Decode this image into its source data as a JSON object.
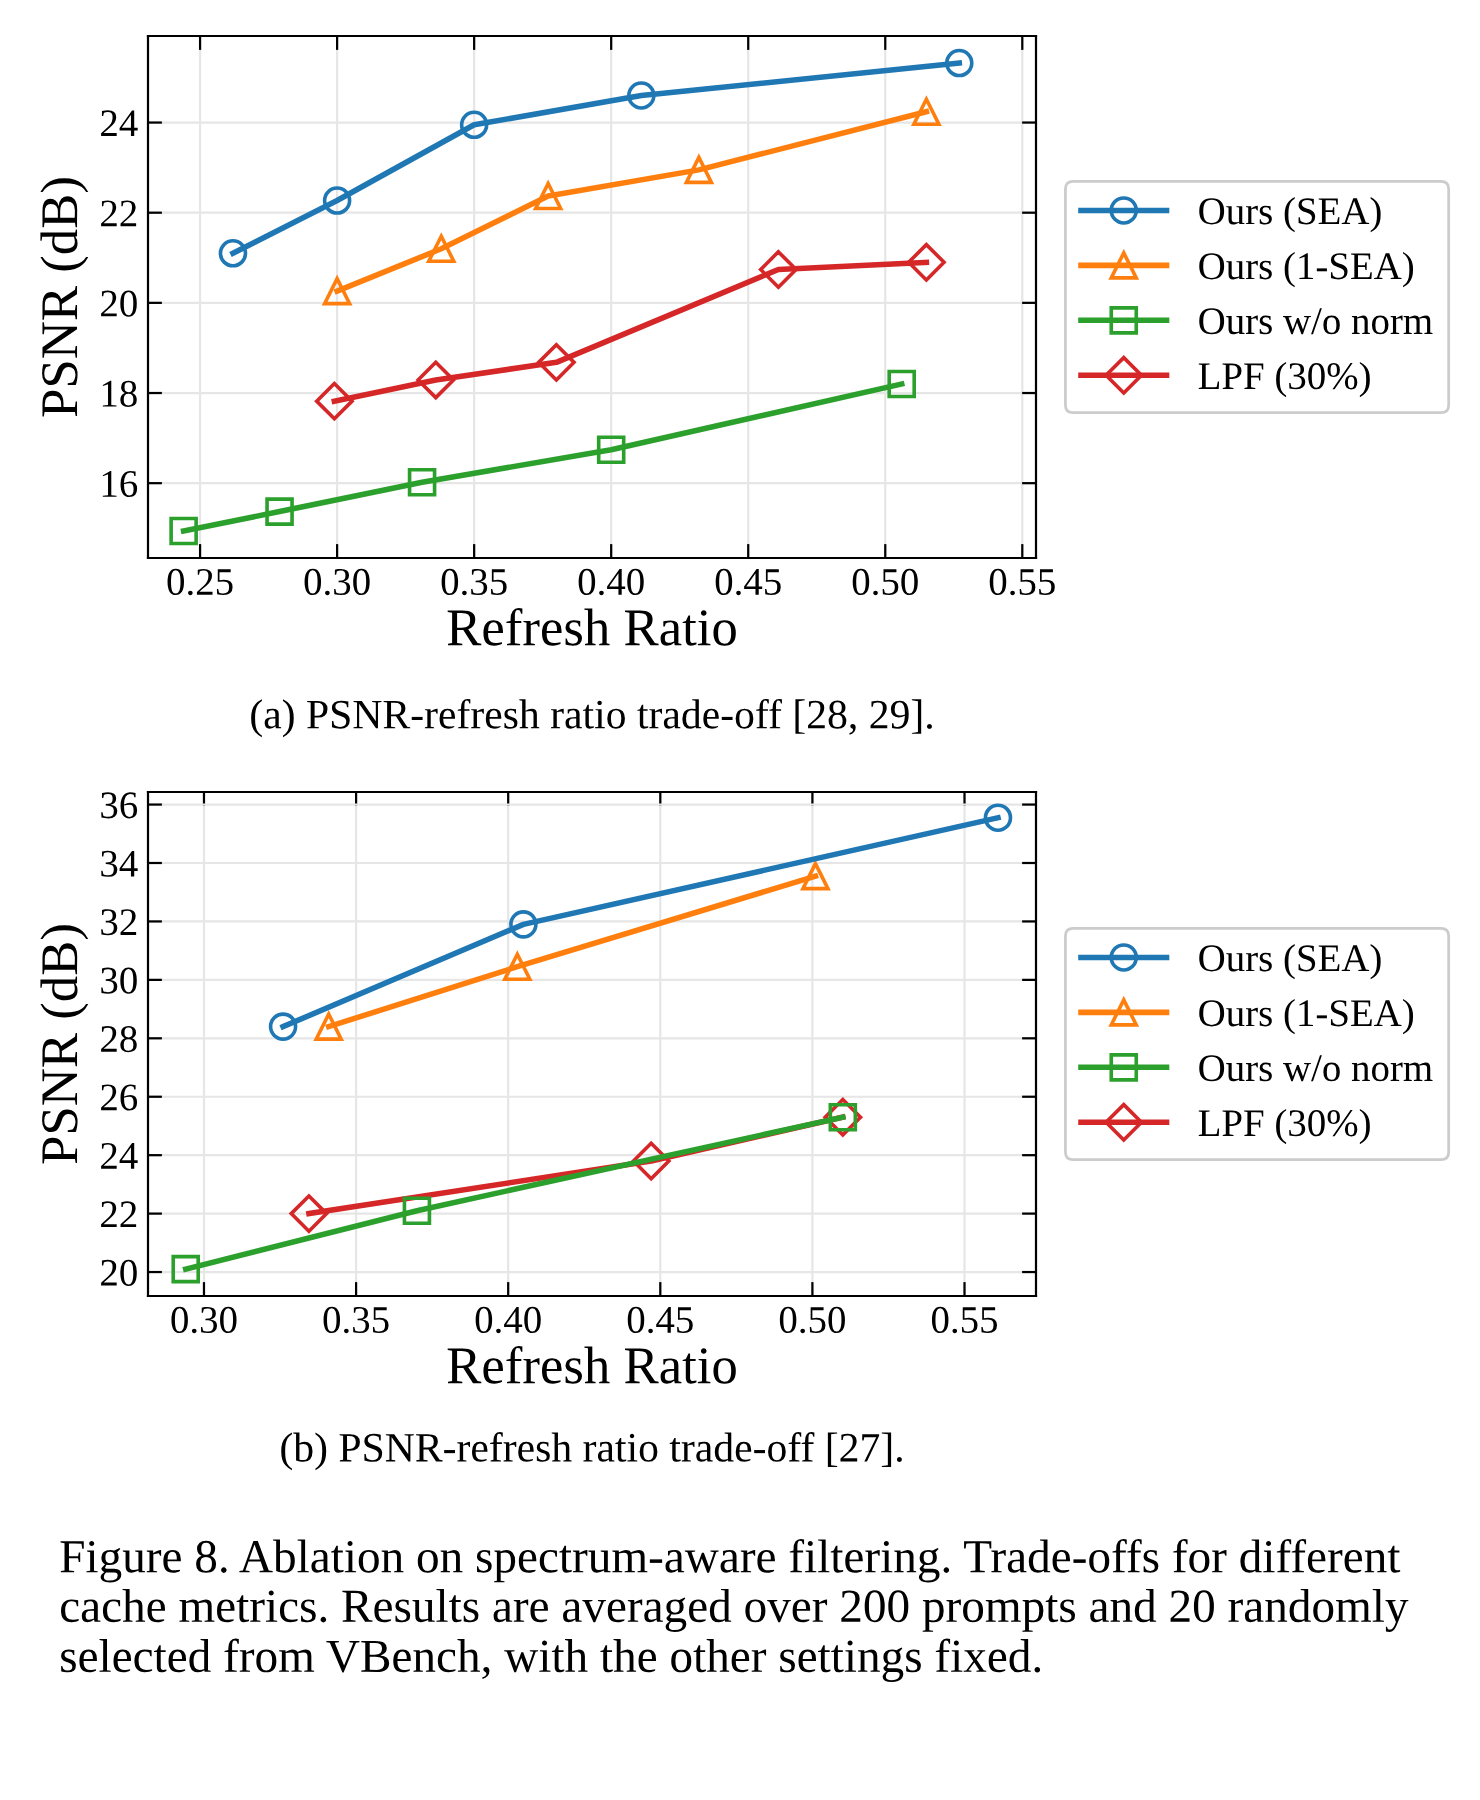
{
  "chart_data": [
    {
      "type": "line",
      "xlabel": "Refresh Ratio",
      "ylabel": "PSNR (dB)",
      "xlim": [
        0.231,
        0.555
      ],
      "xticks": [
        {
          "value": 0.25,
          "label": "0.25"
        },
        {
          "value": 0.3,
          "label": "0.30"
        },
        {
          "value": 0.35,
          "label": "0.35"
        },
        {
          "value": 0.4,
          "label": "0.40"
        },
        {
          "value": 0.45,
          "label": "0.45"
        },
        {
          "value": 0.5,
          "label": "0.50"
        },
        {
          "value": 0.55,
          "label": "0.55"
        }
      ],
      "ylim": [
        14.34,
        25.92
      ],
      "yticks": [
        16,
        18,
        20,
        22,
        24
      ],
      "grid": true,
      "legend": "right",
      "series": [
        {
          "name": "Ours (SEA)",
          "color": "#1f77b4",
          "marker": "circle",
          "x": [
            0.262,
            0.3,
            0.35,
            0.411,
            0.527
          ],
          "values": [
            21.1,
            22.27,
            23.95,
            24.6,
            25.32
          ]
        },
        {
          "name": "Ours (1-SEA)",
          "color": "#ff7f0e",
          "marker": "triangle",
          "x": [
            0.3,
            0.338,
            0.377,
            0.432,
            0.515
          ],
          "values": [
            20.26,
            21.2,
            22.37,
            22.95,
            24.24
          ]
        },
        {
          "name": "Ours w/o norm",
          "color": "#2ca02c",
          "marker": "square",
          "x": [
            0.244,
            0.279,
            0.331,
            0.4,
            0.506
          ],
          "values": [
            14.94,
            15.37,
            16.02,
            16.74,
            18.2
          ]
        },
        {
          "name": "LPF (30%)",
          "color": "#d62728",
          "marker": "diamond",
          "x": [
            0.299,
            0.336,
            0.38,
            0.461,
            0.515
          ],
          "values": [
            17.82,
            18.29,
            18.68,
            20.74,
            20.9
          ]
        }
      ],
      "annotations": [
        "(a) PSNR-refresh ratio trade-off [28, 29]."
      ]
    },
    {
      "type": "line",
      "xlabel": "Refresh Ratio",
      "ylabel": "PSNR (dB)",
      "xlim": [
        0.2816,
        0.5735
      ],
      "xticks": [
        {
          "value": 0.3,
          "label": "0.30"
        },
        {
          "value": 0.35,
          "label": "0.35"
        },
        {
          "value": 0.4,
          "label": "0.40"
        },
        {
          "value": 0.45,
          "label": "0.45"
        },
        {
          "value": 0.5,
          "label": "0.50"
        },
        {
          "value": 0.55,
          "label": "0.55"
        }
      ],
      "ylim": [
        19.18,
        36.43
      ],
      "yticks": [
        20,
        22,
        24,
        26,
        28,
        30,
        32,
        34,
        36
      ],
      "grid": true,
      "legend": "right",
      "series": [
        {
          "name": "Ours (SEA)",
          "color": "#1f77b4",
          "marker": "circle",
          "x": [
            0.326,
            0.405,
            0.561
          ],
          "values": [
            28.4,
            31.9,
            35.55
          ]
        },
        {
          "name": "Ours (1-SEA)",
          "color": "#ff7f0e",
          "marker": "triangle",
          "x": [
            0.341,
            0.403,
            0.501
          ],
          "values": [
            28.4,
            30.45,
            33.55
          ]
        },
        {
          "name": "Ours w/o norm",
          "color": "#2ca02c",
          "marker": "square",
          "x": [
            0.294,
            0.37,
            0.51
          ],
          "values": [
            20.1,
            22.1,
            25.3
          ]
        },
        {
          "name": "LPF (30%)",
          "color": "#d62728",
          "marker": "diamond",
          "x": [
            0.3345,
            0.447,
            0.51
          ],
          "values": [
            22.0,
            23.8,
            25.3
          ]
        }
      ],
      "annotations": [
        "(b) PSNR-refresh ratio trade-off [27].",
        "Figure 8. Ablation on spectrum-aware filtering. Trade-offs for different cache metrics. Results are averaged over 200 prompts and 20 randomly selected from VBench, with the other settings fixed."
      ]
    }
  ]
}
